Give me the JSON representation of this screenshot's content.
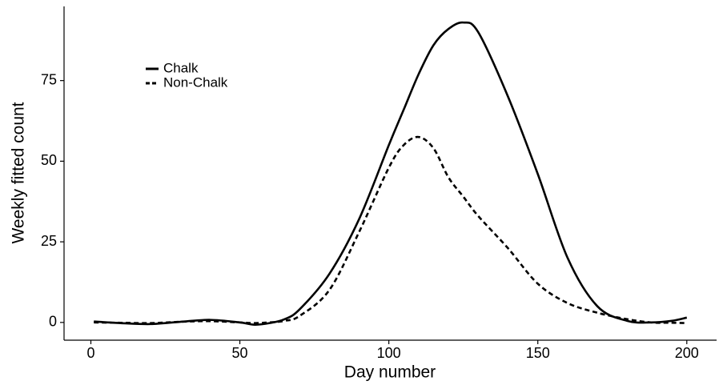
{
  "chart_data": {
    "type": "line",
    "xlabel": "Day number",
    "ylabel": "Weekly fitted count",
    "x": [
      1,
      10,
      20,
      30,
      40,
      50,
      55,
      60,
      65,
      70,
      80,
      90,
      100,
      105,
      110,
      115,
      120,
      125,
      130,
      140,
      150,
      160,
      170,
      180,
      188,
      195,
      200
    ],
    "series": [
      {
        "name": "Chalk",
        "color": "#000000",
        "linestyle": "solid",
        "values": [
          0.3,
          -0.2,
          -0.5,
          0.2,
          0.8,
          0,
          -0.7,
          -0.2,
          1,
          4,
          15,
          32,
          55,
          66,
          77,
          86,
          91,
          93,
          90,
          70,
          46,
          20,
          5,
          0.5,
          0,
          0.5,
          1.5
        ]
      },
      {
        "name": "Non-Chalk",
        "color": "#000000",
        "linestyle": "dashed",
        "values": [
          0,
          -0.1,
          -0.2,
          0.2,
          0.4,
          0,
          -0.2,
          0,
          0.5,
          2,
          10,
          28,
          48,
          55,
          57.5,
          54,
          45,
          39,
          33,
          23,
          12,
          6,
          3,
          1,
          0,
          -0.1,
          -0.2
        ]
      }
    ],
    "xlim": [
      -9,
      210
    ],
    "xticks": [
      0,
      50,
      100,
      150,
      200
    ],
    "ylim": [
      -5.5,
      98
    ],
    "yticks": [
      0,
      25,
      50,
      75
    ],
    "grid": false,
    "legend": "top-left"
  }
}
